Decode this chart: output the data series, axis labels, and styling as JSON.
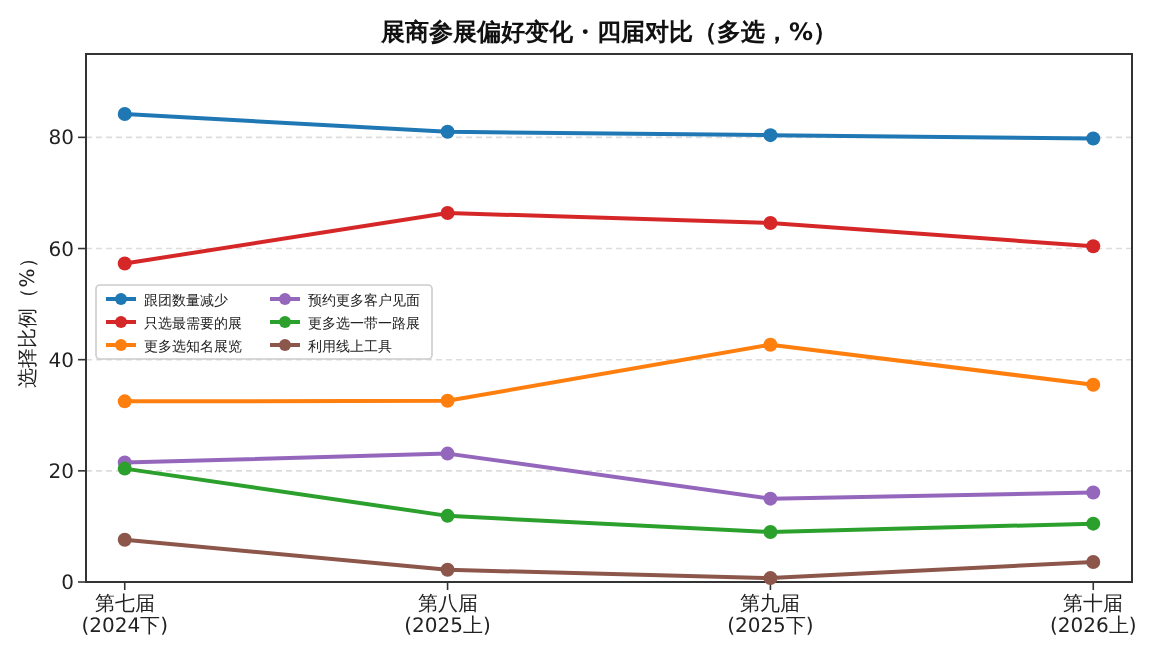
{
  "chart_data": {
    "type": "line",
    "title": "展商参展偏好变化・四届对比（多选，%）",
    "ylabel": "选择比例（%）",
    "categories": [
      "第七届\n(2024下)",
      "第八届\n(2025上)",
      "第九届\n(2025下)",
      "第十届\n(2026上)"
    ],
    "series": [
      {
        "name": "跟团数量减少",
        "color": "#1f77b4",
        "values": [
          84.2,
          81.0,
          80.4,
          79.8
        ]
      },
      {
        "name": "只选最需要的展",
        "color": "#d62728",
        "values": [
          57.3,
          66.4,
          64.6,
          60.4
        ]
      },
      {
        "name": "更多选知名展览",
        "color": "#ff7f0e",
        "values": [
          32.5,
          32.6,
          42.7,
          35.5
        ]
      },
      {
        "name": "预约更多客户见面",
        "color": "#9467bd",
        "values": [
          21.5,
          23.1,
          15.0,
          16.1
        ]
      },
      {
        "name": "更多选一带一路展",
        "color": "#2ca02c",
        "values": [
          20.4,
          11.9,
          9.0,
          10.5
        ]
      },
      {
        "name": "利用线上工具",
        "color": "#8c564b",
        "values": [
          7.6,
          2.2,
          0.7,
          3.6
        ]
      }
    ],
    "ylim": [
      0,
      95
    ],
    "yticks": [
      0,
      20,
      40,
      60,
      80
    ],
    "grid": "y",
    "legend": "left",
    "marker": "circle",
    "line_style": "solid"
  }
}
